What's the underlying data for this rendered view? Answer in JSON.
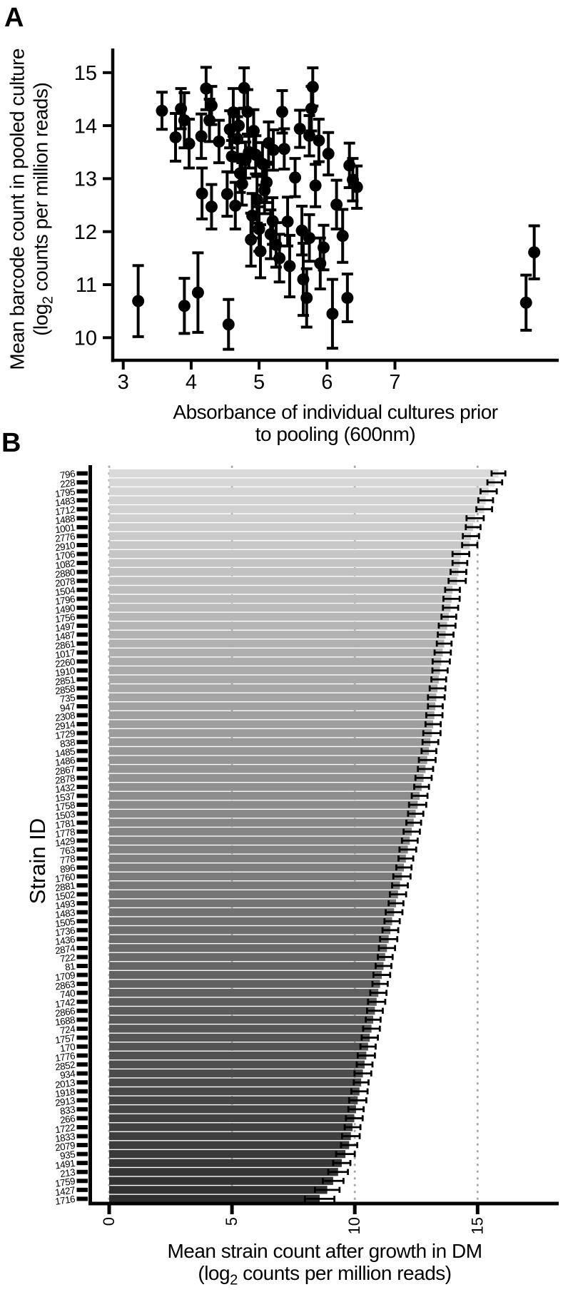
{
  "panels": {
    "a": {
      "letter": "A",
      "y_axis_title_line1": "Mean barcode count in pooled culture",
      "y_axis_title_line2_pre": "(log",
      "y_axis_title_sub": "2",
      "y_axis_title_line2_post": " counts per million reads)",
      "x_axis_title_line1": "Absorbance of individual cultures prior",
      "x_axis_title_line2": "to pooling (600nm)"
    },
    "b": {
      "letter": "B",
      "y_axis_title": "Strain ID",
      "x_axis_title_line1": "Mean strain count after growth in DM",
      "x_axis_title_line2_pre": "(log",
      "x_axis_title_sub": "2",
      "x_axis_title_line2_post": " counts per million reads)"
    }
  },
  "colors": {
    "foreground": "#000000",
    "background": "#ffffff",
    "grid_dot": "#ababab",
    "bar_gradient_start": "#d9d9d9",
    "bar_gradient_end": "#2f2f2f"
  },
  "chart_data": [
    {
      "type": "scatter",
      "panel": "A",
      "xlabel": "Absorbance of individual cultures prior to pooling (600nm)",
      "ylabel": "Mean barcode count in pooled culture (log2 counts per million reads)",
      "x_ticks": [
        3,
        4,
        5,
        6,
        7
      ],
      "y_ticks": [
        10,
        11,
        12,
        13,
        14,
        15
      ],
      "xlim": [
        2.84,
        9.33
      ],
      "ylim": [
        9.57,
        15.45
      ],
      "marker": "filled-circle",
      "error_bars": "vertical",
      "points": [
        [
          3.22,
          10.69,
          0.67
        ],
        [
          3.57,
          14.28,
          0.35
        ],
        [
          3.77,
          13.78,
          0.45
        ],
        [
          3.85,
          14.32,
          0.38
        ],
        [
          3.9,
          14.1,
          0.52
        ],
        [
          3.9,
          10.6,
          0.52
        ],
        [
          3.97,
          13.66,
          0.46
        ],
        [
          4.1,
          10.85,
          0.75
        ],
        [
          4.15,
          13.8,
          0.42
        ],
        [
          4.16,
          12.72,
          0.48
        ],
        [
          4.22,
          14.7,
          0.4
        ],
        [
          4.27,
          14.1,
          0.4
        ],
        [
          4.3,
          14.38,
          0.36
        ],
        [
          4.3,
          12.47,
          0.42
        ],
        [
          4.41,
          13.7,
          0.4
        ],
        [
          4.53,
          12.71,
          0.42
        ],
        [
          4.55,
          10.25,
          0.47
        ],
        [
          4.57,
          13.93,
          0.35
        ],
        [
          4.6,
          13.42,
          0.3
        ],
        [
          4.62,
          14.25,
          0.45
        ],
        [
          4.65,
          12.49,
          0.44
        ],
        [
          4.68,
          13.75,
          0.42
        ],
        [
          4.7,
          14.0,
          0.32
        ],
        [
          4.72,
          13.1,
          0.36
        ],
        [
          4.75,
          12.9,
          0.4
        ],
        [
          4.78,
          14.71,
          0.38
        ],
        [
          4.8,
          13.35,
          0.34
        ],
        [
          4.83,
          14.26,
          0.42
        ],
        [
          4.85,
          13.5,
          0.3
        ],
        [
          4.88,
          11.85,
          0.5
        ],
        [
          4.9,
          12.3,
          0.42
        ],
        [
          4.92,
          13.9,
          0.4
        ],
        [
          4.95,
          13.45,
          0.36
        ],
        [
          4.97,
          12.6,
          0.44
        ],
        [
          5.0,
          12.05,
          0.42
        ],
        [
          5.02,
          11.63,
          0.5
        ],
        [
          5.05,
          13.28,
          0.4
        ],
        [
          5.08,
          12.78,
          0.44
        ],
        [
          5.11,
          12.93,
          0.38
        ],
        [
          5.14,
          13.67,
          0.4
        ],
        [
          5.17,
          11.95,
          0.46
        ],
        [
          5.2,
          12.2,
          0.44
        ],
        [
          5.21,
          13.54,
          0.38
        ],
        [
          5.25,
          11.75,
          0.42
        ],
        [
          5.3,
          11.5,
          0.45
        ],
        [
          5.34,
          14.26,
          0.4
        ],
        [
          5.37,
          13.56,
          0.38
        ],
        [
          5.42,
          12.19,
          0.46
        ],
        [
          5.45,
          11.35,
          0.58
        ],
        [
          5.53,
          13.02,
          0.36
        ],
        [
          5.6,
          13.94,
          0.35
        ],
        [
          5.63,
          12.02,
          0.46
        ],
        [
          5.65,
          11.1,
          0.68
        ],
        [
          5.7,
          10.75,
          0.55
        ],
        [
          5.74,
          13.81,
          0.38
        ],
        [
          5.74,
          11.88,
          0.44
        ],
        [
          5.77,
          14.32,
          0.42
        ],
        [
          5.79,
          14.73,
          0.36
        ],
        [
          5.83,
          12.87,
          0.4
        ],
        [
          5.88,
          13.72,
          0.4
        ],
        [
          5.9,
          11.4,
          0.48
        ],
        [
          5.95,
          11.7,
          0.42
        ],
        [
          6.02,
          13.47,
          0.4
        ],
        [
          6.08,
          10.45,
          0.65
        ],
        [
          6.14,
          12.51,
          0.46
        ],
        [
          6.23,
          11.92,
          0.5
        ],
        [
          6.3,
          10.75,
          0.45
        ],
        [
          6.33,
          13.25,
          0.42
        ],
        [
          6.38,
          12.98,
          0.4
        ],
        [
          6.44,
          12.84,
          0.4
        ],
        [
          8.93,
          10.66,
          0.52
        ],
        [
          9.05,
          11.61,
          0.5
        ]
      ]
    },
    {
      "type": "bar",
      "panel": "B",
      "orientation": "horizontal",
      "xlabel": "Mean strain count after growth in DM (log2 counts per million reads)",
      "ylabel": "Strain ID",
      "x_ticks": [
        0,
        5,
        10,
        15
      ],
      "xlim": [
        0,
        18.2
      ],
      "gridlines": "dotted vertical at major breaks",
      "bar_color_start": "#d9d9d9",
      "bar_color_end": "#2f2f2f",
      "categories": [
        "796",
        "228",
        "1795",
        "1483",
        "1712",
        "1488",
        "1001",
        "2776",
        "2910",
        "1706",
        "1082",
        "2880",
        "2078",
        "1504",
        "1796",
        "1490",
        "1756",
        "1497",
        "1487",
        "2861",
        "1017",
        "2260",
        "1910",
        "2851",
        "2858",
        "735",
        "947",
        "2308",
        "2914",
        "1729",
        "838",
        "1485",
        "1486",
        "2867",
        "2878",
        "1432",
        "1537",
        "1758",
        "1503",
        "1781",
        "1778",
        "1429",
        "763",
        "778",
        "896",
        "1760",
        "2881",
        "1502",
        "1493",
        "1483",
        "1505",
        "1736",
        "1436",
        "2874",
        "722",
        "81",
        "1709",
        "2863",
        "740",
        "1742",
        "2866",
        "1688",
        "724",
        "1757",
        "170",
        "1776",
        "2852",
        "934",
        "2013",
        "1918",
        "2913",
        "833",
        "266",
        "1722",
        "1833",
        "2079",
        "935",
        "1491",
        "213",
        "1759",
        "1427",
        "1716"
      ],
      "values": [
        15.85,
        15.7,
        15.45,
        15.33,
        15.27,
        14.9,
        14.82,
        14.73,
        14.68,
        14.32,
        14.28,
        14.22,
        14.17,
        13.98,
        13.94,
        13.9,
        13.83,
        13.76,
        13.7,
        13.64,
        13.58,
        13.52,
        13.47,
        13.42,
        13.37,
        13.32,
        13.28,
        13.24,
        13.19,
        13.14,
        13.08,
        13.02,
        12.95,
        12.88,
        12.8,
        12.72,
        12.64,
        12.56,
        12.48,
        12.4,
        12.32,
        12.24,
        12.16,
        12.08,
        12.0,
        11.92,
        11.84,
        11.76,
        11.68,
        11.6,
        11.52,
        11.45,
        11.38,
        11.31,
        11.24,
        11.17,
        11.1,
        11.03,
        10.96,
        10.89,
        10.82,
        10.75,
        10.68,
        10.61,
        10.54,
        10.47,
        10.4,
        10.33,
        10.26,
        10.19,
        10.12,
        10.05,
        9.98,
        9.91,
        9.84,
        9.77,
        9.62,
        9.47,
        9.32,
        9.12,
        8.88,
        8.57
      ],
      "errors": [
        0.28,
        0.3,
        0.33,
        0.3,
        0.32,
        0.35,
        0.3,
        0.33,
        0.31,
        0.34,
        0.3,
        0.32,
        0.35,
        0.3,
        0.33,
        0.31,
        0.3,
        0.34,
        0.32,
        0.3,
        0.33,
        0.35,
        0.31,
        0.3,
        0.32,
        0.34,
        0.3,
        0.33,
        0.31,
        0.35,
        0.32,
        0.3,
        0.34,
        0.31,
        0.33,
        0.3,
        0.32,
        0.35,
        0.31,
        0.3,
        0.33,
        0.32,
        0.34,
        0.3,
        0.31,
        0.35,
        0.32,
        0.33,
        0.3,
        0.34,
        0.31,
        0.32,
        0.35,
        0.33,
        0.3,
        0.32,
        0.34,
        0.31,
        0.33,
        0.35,
        0.32,
        0.3,
        0.34,
        0.33,
        0.31,
        0.35,
        0.32,
        0.34,
        0.3,
        0.33,
        0.35,
        0.31,
        0.34,
        0.32,
        0.36,
        0.33,
        0.38,
        0.35,
        0.4,
        0.42,
        0.5,
        0.6
      ]
    }
  ]
}
